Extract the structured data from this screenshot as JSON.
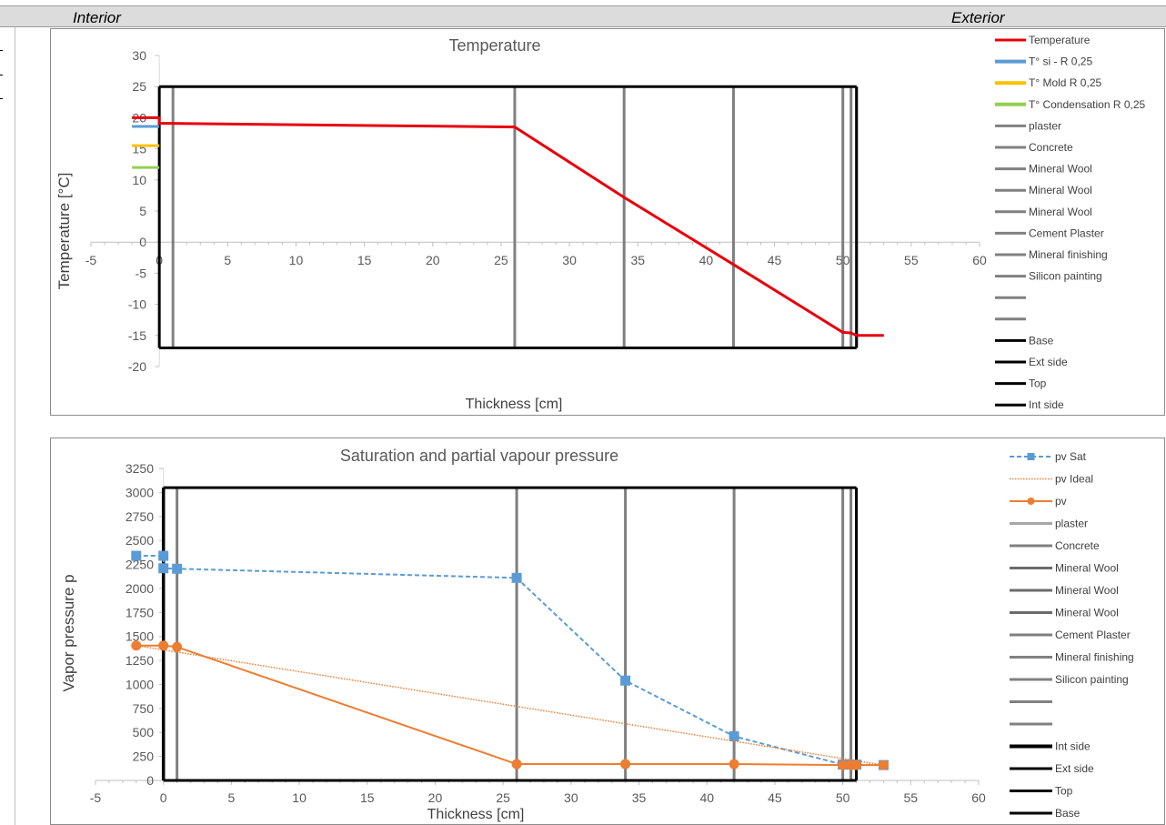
{
  "header": {
    "interior_label": "Interior",
    "exterior_label": "Exterior"
  },
  "chart_data": [
    {
      "type": "line",
      "title": "Temperature",
      "xlabel": "Thickness [cm]",
      "ylabel": "Temperature  [°C]",
      "xlim": [
        -5,
        60
      ],
      "ylim": [
        -20,
        30
      ],
      "xticks": [
        -5,
        0,
        5,
        10,
        15,
        20,
        25,
        30,
        35,
        40,
        45,
        50,
        55,
        60
      ],
      "yticks": [
        30,
        25,
        20,
        15,
        10,
        5,
        0,
        -5,
        -10,
        -15,
        -20
      ],
      "legend_position": "right",
      "box": {
        "x": [
          0,
          51
        ],
        "y": [
          -17,
          25
        ]
      },
      "layer_lines_x": [
        1,
        26,
        34,
        42,
        50,
        50.6,
        51
      ],
      "series": [
        {
          "name": "Temperature",
          "color": "#e8000b",
          "style": "solid",
          "x": [
            -2,
            0,
            0,
            26,
            34,
            42,
            50,
            50.6,
            51,
            53
          ],
          "y": [
            20,
            20,
            19.1,
            18.5,
            7.2,
            -3.6,
            -14.5,
            -14.6,
            -15,
            -15
          ]
        },
        {
          "name": "T° si - R 0,25",
          "color": "#5b9bd5",
          "style": "solid",
          "x": [
            -2,
            0
          ],
          "y": [
            18.6,
            18.6
          ]
        },
        {
          "name": "T° Mold R 0,25",
          "color": "#ffc000",
          "style": "solid",
          "x": [
            -2,
            0
          ],
          "y": [
            15.5,
            15.5
          ]
        },
        {
          "name": "T° Condensation R 0,25",
          "color": "#92d050",
          "style": "solid",
          "x": [
            -2,
            0
          ],
          "y": [
            12,
            12
          ]
        }
      ],
      "legend": [
        {
          "label": "Temperature",
          "color": "#e8000b",
          "width": 3
        },
        {
          "label": "T° si - R 0,25",
          "color": "#5b9bd5",
          "width": 4
        },
        {
          "label": "T° Mold R 0,25",
          "color": "#ffc000",
          "width": 4
        },
        {
          "label": "T° Condensation R 0,25",
          "color": "#92d050",
          "width": 4
        },
        {
          "label": "plaster",
          "color": "#808080",
          "width": 3
        },
        {
          "label": "Concrete",
          "color": "#808080",
          "width": 3
        },
        {
          "label": "Mineral Wool",
          "color": "#808080",
          "width": 3
        },
        {
          "label": "Mineral Wool",
          "color": "#808080",
          "width": 3
        },
        {
          "label": "Mineral Wool",
          "color": "#808080",
          "width": 3
        },
        {
          "label": "Cement Plaster",
          "color": "#808080",
          "width": 3
        },
        {
          "label": "Mineral finishing",
          "color": "#808080",
          "width": 3
        },
        {
          "label": "Silicon painting",
          "color": "#808080",
          "width": 3
        },
        {
          "label": "",
          "color": "#808080",
          "width": 3
        },
        {
          "label": "",
          "color": "#808080",
          "width": 3
        },
        {
          "label": "Base",
          "color": "#000000",
          "width": 3
        },
        {
          "label": "Ext side",
          "color": "#000000",
          "width": 3
        },
        {
          "label": "Top",
          "color": "#000000",
          "width": 3
        },
        {
          "label": "Int side",
          "color": "#000000",
          "width": 3
        }
      ]
    },
    {
      "type": "line",
      "title": "Saturation and partial vapour pressure",
      "xlabel": "Thickness  [cm]",
      "ylabel": "Vapor pressure  p",
      "xlim": [
        -5,
        60
      ],
      "ylim": [
        0,
        3250
      ],
      "xticks": [
        -5,
        0,
        5,
        10,
        15,
        20,
        25,
        30,
        35,
        40,
        45,
        50,
        55,
        60
      ],
      "yticks": [
        3250,
        3000,
        2750,
        2500,
        2250,
        2000,
        1750,
        1500,
        1250,
        1000,
        750,
        500,
        250,
        0
      ],
      "legend_position": "right",
      "box": {
        "x": [
          0,
          51
        ],
        "y": [
          0,
          3050
        ]
      },
      "layer_lines_x": [
        1,
        26,
        34,
        42,
        50,
        50.6,
        51
      ],
      "series": [
        {
          "name": "pv Sat",
          "color": "#5b9bd5",
          "style": "dashed",
          "marker": "square",
          "x": [
            -2,
            0,
            0,
            1,
            26,
            34,
            42,
            50,
            50.6,
            51,
            53
          ],
          "y": [
            2340,
            2340,
            2210,
            2205,
            2110,
            1040,
            460,
            165,
            165,
            165,
            160
          ]
        },
        {
          "name": "pv Ideal",
          "color": "#ed7d31",
          "style": "dotted",
          "x": [
            -2,
            53
          ],
          "y": [
            1405,
            160
          ]
        },
        {
          "name": "pv",
          "color": "#ed7d31",
          "style": "solid",
          "marker": "circle",
          "x": [
            -2,
            0,
            1,
            26,
            34,
            42,
            50,
            50.6,
            51,
            53
          ],
          "y": [
            1405,
            1405,
            1390,
            170,
            170,
            170,
            160,
            160,
            160,
            160
          ]
        }
      ],
      "legend": [
        {
          "label": "pv Sat",
          "color": "#5b9bd5",
          "width": 2,
          "dash": "5,3",
          "marker": "square"
        },
        {
          "label": "pv Ideal",
          "color": "#ed7d31",
          "width": 1.5,
          "dash": "1.5,1.5"
        },
        {
          "label": "pv",
          "color": "#ed7d31",
          "width": 2,
          "marker": "circle"
        },
        {
          "label": "plaster",
          "color": "#a6a6a6",
          "width": 3
        },
        {
          "label": "Concrete",
          "color": "#808080",
          "width": 3
        },
        {
          "label": "Mineral Wool",
          "color": "#6b6b6b",
          "width": 3
        },
        {
          "label": "Mineral Wool",
          "color": "#6b6b6b",
          "width": 3
        },
        {
          "label": "Mineral Wool",
          "color": "#6b6b6b",
          "width": 3
        },
        {
          "label": "Cement Plaster",
          "color": "#808080",
          "width": 3
        },
        {
          "label": "Mineral finishing",
          "color": "#808080",
          "width": 3
        },
        {
          "label": "Silicon painting",
          "color": "#808080",
          "width": 3
        },
        {
          "label": "",
          "color": "#808080",
          "width": 3
        },
        {
          "label": "",
          "color": "#808080",
          "width": 3
        },
        {
          "label": "Int side",
          "color": "#000000",
          "width": 4
        },
        {
          "label": "Ext side",
          "color": "#000000",
          "width": 3
        },
        {
          "label": "Top",
          "color": "#000000",
          "width": 3
        },
        {
          "label": "Base",
          "color": "#000000",
          "width": 3
        }
      ]
    }
  ]
}
